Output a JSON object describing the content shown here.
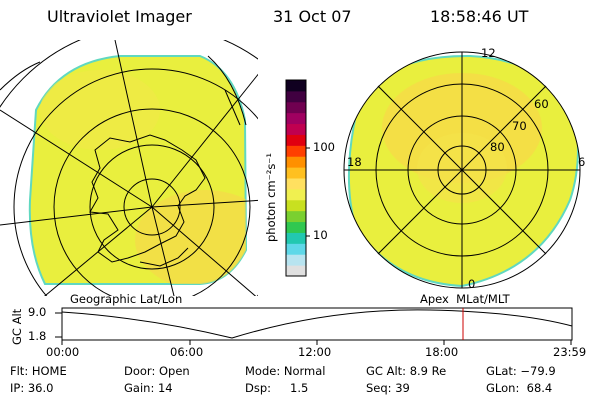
{
  "header": {
    "instrument": "Ultraviolet Imager",
    "date": "31 Oct 07",
    "time": "18:58:46 UT"
  },
  "colorbar": {
    "unit_label": "photon cm⁻²s⁻¹",
    "tick_labels": [
      "100",
      "10"
    ],
    "colors": [
      "#e0e0e0",
      "#b8e4f0",
      "#5fd8e8",
      "#22c8b0",
      "#30c850",
      "#7ad030",
      "#c8e020",
      "#f0f050",
      "#ffe060",
      "#ffc020",
      "#ff9000",
      "#ff4000",
      "#e00010",
      "#c00050",
      "#a00060",
      "#700050",
      "#400040",
      "#100020"
    ]
  },
  "left_panel": {
    "caption": "Geographic Lat/Lon"
  },
  "right_panel": {
    "caption": "Apex  MLat/MLT",
    "mlt_labels": {
      "top": "12",
      "left": "18",
      "right": "6",
      "bottom": "0"
    },
    "mlat_labels": [
      "60",
      "70",
      "80"
    ]
  },
  "altitude_strip": {
    "axis_label": "GC Alt",
    "y_ticks": [
      "9.0",
      "1.8"
    ],
    "x_ticks": [
      "00:00",
      "06:00",
      "12:00",
      "18:00",
      "23:59"
    ],
    "marker_color": "#cc0000"
  },
  "status": {
    "flt": "Flt: HOME",
    "ip": "IP: 36.0",
    "door": "Door: Open",
    "gain": "Gain: 14",
    "mode": "Mode: Normal",
    "dsp_label": "Dsp:",
    "dsp_value": "1.5",
    "gc_alt": "GC Alt: 8.9 Re",
    "seq": "Seq: 39",
    "glat": "GLat: −79.9",
    "glon": "GLon:  68.4"
  },
  "colors": {
    "image_fill": "#e8f040",
    "image_fill_alt": "#f6e24a",
    "edge": "#60d8c0",
    "grid": "#000000"
  }
}
